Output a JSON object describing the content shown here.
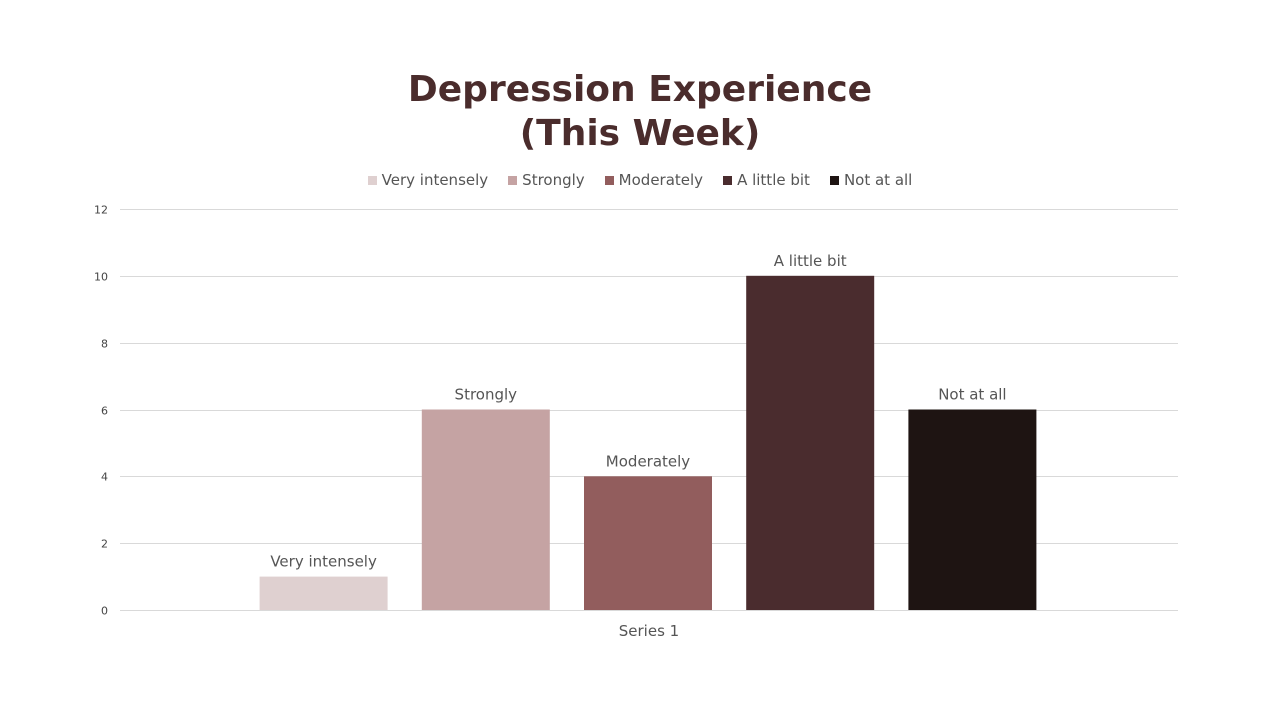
{
  "chart_data": {
    "type": "bar",
    "title_lines": [
      "Depression Experience",
      "(This Week)"
    ],
    "categories": [
      "Series 1"
    ],
    "series": [
      {
        "name": "Very intensely",
        "values": [
          1
        ],
        "color": "#dfd0d0"
      },
      {
        "name": "Strongly",
        "values": [
          6
        ],
        "color": "#c5a3a3"
      },
      {
        "name": "Moderately",
        "values": [
          4
        ],
        "color": "#925d5d"
      },
      {
        "name": "A little bit",
        "values": [
          10
        ],
        "color": "#4a2c2e"
      },
      {
        "name": "Not at all",
        "values": [
          6
        ],
        "color": "#1e1412"
      }
    ],
    "data_labels": "series-name",
    "xlabel": "",
    "ylabel": "",
    "ylim": [
      0,
      12
    ],
    "yticks": [
      0,
      2,
      4,
      6,
      8,
      10,
      12
    ],
    "grid": true,
    "legend_position": "top"
  }
}
